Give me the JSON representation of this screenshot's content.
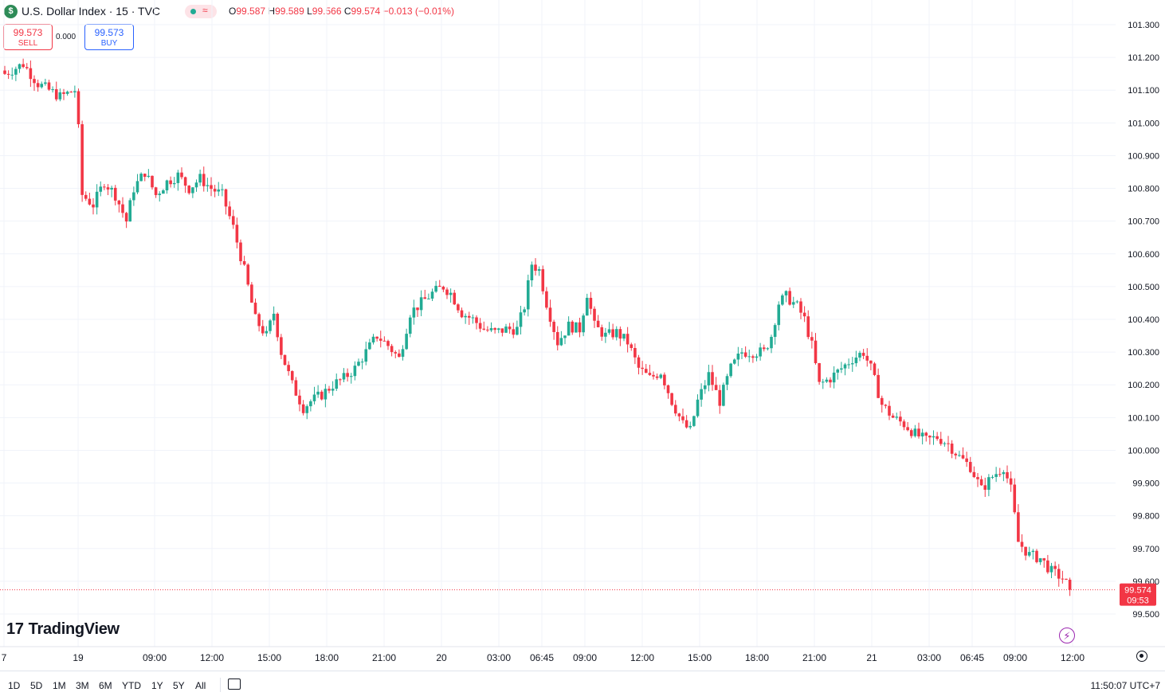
{
  "header": {
    "logo_letter": "$",
    "symbol_title": "U.S. Dollar Index · 15 · TVC",
    "status_icon": "market-open-dot",
    "ohlc": {
      "o_label": "O",
      "o": "99.587",
      "h_label": "H",
      "h": "99.589",
      "l_label": "L",
      "l": "99.566",
      "c_label": "C",
      "c": "99.574",
      "change": "−0.013 (−0.01%)"
    }
  },
  "trade": {
    "sell_price": "99.573",
    "sell_label": "SELL",
    "spread": "0.000",
    "buy_price": "99.573",
    "buy_label": "BUY"
  },
  "colors": {
    "up": "#22ab94",
    "down": "#f23645",
    "grid": "#f0f3fa",
    "price_line": "#f23645"
  },
  "chart_data": {
    "type": "candlestick",
    "title": "U.S. Dollar Index · 15 · TVC",
    "ylim": [
      99.5,
      101.3
    ],
    "y_ticks": [
      "101.300",
      "101.200",
      "101.100",
      "101.000",
      "100.900",
      "100.800",
      "100.700",
      "100.600",
      "100.500",
      "100.400",
      "100.300",
      "100.200",
      "100.100",
      "100.000",
      "99.900",
      "99.800",
      "99.700",
      "99.600",
      "99.500"
    ],
    "x_ticks": [
      "7",
      "19",
      "09:00",
      "12:00",
      "15:00",
      "18:00",
      "21:00",
      "20",
      "03:00",
      "06:45",
      "09:00",
      "12:00",
      "15:00",
      "18:00",
      "21:00",
      "21",
      "03:00",
      "06:45",
      "09:00",
      "12:00"
    ],
    "last_price": "99.574",
    "countdown": "09:53",
    "grid": true,
    "close_path": [
      [
        0,
        101.15
      ],
      [
        5,
        101.18
      ],
      [
        9,
        101.12
      ],
      [
        15,
        101.08
      ],
      [
        19,
        101.1
      ],
      [
        20,
        100.98
      ],
      [
        21,
        100.78
      ],
      [
        24,
        100.75
      ],
      [
        27,
        100.82
      ],
      [
        30,
        100.78
      ],
      [
        33,
        100.7
      ],
      [
        35,
        100.8
      ],
      [
        38,
        100.85
      ],
      [
        41,
        100.78
      ],
      [
        44,
        100.82
      ],
      [
        47,
        100.84
      ],
      [
        50,
        100.8
      ],
      [
        53,
        100.83
      ],
      [
        56,
        100.8
      ],
      [
        59,
        100.78
      ],
      [
        62,
        100.68
      ],
      [
        65,
        100.55
      ],
      [
        68,
        100.4
      ],
      [
        71,
        100.35
      ],
      [
        73,
        100.42
      ],
      [
        75,
        100.3
      ],
      [
        78,
        100.2
      ],
      [
        81,
        100.13
      ],
      [
        83,
        100.15
      ],
      [
        86,
        100.17
      ],
      [
        89,
        100.2
      ],
      [
        92,
        100.22
      ],
      [
        95,
        100.25
      ],
      [
        98,
        100.3
      ],
      [
        101,
        100.35
      ],
      [
        104,
        100.32
      ],
      [
        107,
        100.28
      ],
      [
        110,
        100.42
      ],
      [
        113,
        100.45
      ],
      [
        116,
        100.48
      ],
      [
        119,
        100.5
      ],
      [
        121,
        100.48
      ],
      [
        124,
        100.42
      ],
      [
        127,
        100.4
      ],
      [
        130,
        100.37
      ],
      [
        133,
        100.36
      ],
      [
        136,
        100.37
      ],
      [
        139,
        100.37
      ],
      [
        141,
        100.44
      ],
      [
        143,
        100.57
      ],
      [
        145,
        100.55
      ],
      [
        147,
        100.45
      ],
      [
        150,
        100.33
      ],
      [
        153,
        100.38
      ],
      [
        156,
        100.37
      ],
      [
        158,
        100.48
      ],
      [
        160,
        100.38
      ],
      [
        163,
        100.35
      ],
      [
        166,
        100.36
      ],
      [
        169,
        100.33
      ],
      [
        172,
        100.25
      ],
      [
        175,
        100.22
      ],
      [
        178,
        100.24
      ],
      [
        181,
        100.15
      ],
      [
        184,
        100.08
      ],
      [
        186,
        100.06
      ],
      [
        188,
        100.15
      ],
      [
        191,
        100.23
      ],
      [
        194,
        100.15
      ],
      [
        197,
        100.25
      ],
      [
        200,
        100.3
      ],
      [
        203,
        100.3
      ],
      [
        206,
        100.3
      ],
      [
        208,
        100.35
      ],
      [
        210,
        100.45
      ],
      [
        212,
        100.47
      ],
      [
        215,
        100.44
      ],
      [
        217,
        100.4
      ],
      [
        219,
        100.32
      ],
      [
        221,
        100.2
      ],
      [
        224,
        100.22
      ],
      [
        227,
        100.25
      ],
      [
        230,
        100.28
      ],
      [
        233,
        100.3
      ],
      [
        235,
        100.25
      ],
      [
        238,
        100.14
      ],
      [
        241,
        100.1
      ],
      [
        244,
        100.08
      ],
      [
        247,
        100.05
      ],
      [
        250,
        100.03
      ],
      [
        253,
        100.04
      ],
      [
        256,
        100.02
      ],
      [
        259,
        99.98
      ],
      [
        262,
        99.95
      ],
      [
        265,
        99.88
      ],
      [
        268,
        99.92
      ],
      [
        271,
        99.95
      ],
      [
        273,
        99.88
      ],
      [
        275,
        99.72
      ],
      [
        278,
        99.68
      ],
      [
        281,
        99.67
      ],
      [
        284,
        99.63
      ],
      [
        287,
        99.61
      ],
      [
        289,
        99.575
      ]
    ]
  },
  "watermark": {
    "text": "TradingView",
    "mark": "17"
  },
  "bottom": {
    "ranges": [
      "1D",
      "5D",
      "1M",
      "3M",
      "6M",
      "YTD",
      "1Y",
      "5Y",
      "All"
    ],
    "clock": "11:50:07 UTC+7"
  },
  "icons": {
    "calendar": "calendar-goto-icon",
    "settings": "settings-gear-icon",
    "bolt": "lightning-icon"
  }
}
